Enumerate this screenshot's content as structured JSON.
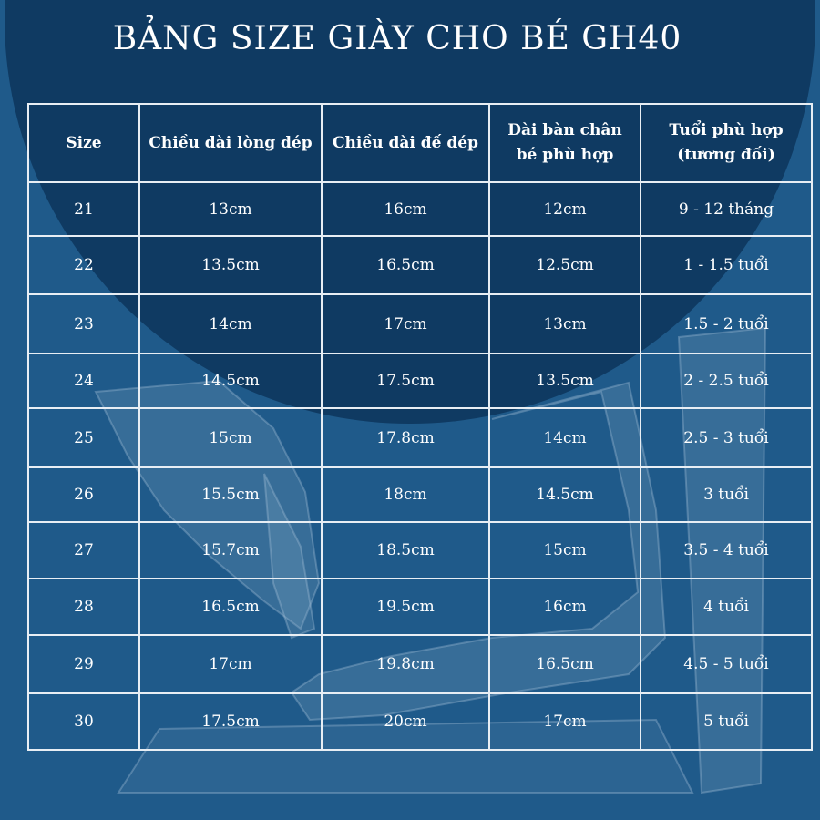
{
  "title": "BẢNG SIZE GIÀY CHO BÉ GH40",
  "colors": {
    "background": "#1f5a8a",
    "dark_circle": "#0f3a62",
    "text": "#ffffff",
    "grid": "#e8eef4"
  },
  "table": {
    "headers": [
      "Size",
      "Chiều dài lòng dép",
      "Chiều dài đế dép",
      "Dài bàn chân bé phù hợp",
      "Tuổi phù hợp (tương đối)"
    ],
    "rows": [
      [
        "21",
        "13cm",
        "16cm",
        "12cm",
        "9 - 12 tháng"
      ],
      [
        "22",
        "13.5cm",
        "16.5cm",
        "12.5cm",
        "1 - 1.5 tuổi"
      ],
      [
        "23",
        "14cm",
        "17cm",
        "13cm",
        "1.5 - 2 tuổi"
      ],
      [
        "24",
        "14.5cm",
        "17.5cm",
        "13.5cm",
        "2 - 2.5 tuổi"
      ],
      [
        "25",
        "15cm",
        "17.8cm",
        "14cm",
        "2.5 - 3 tuổi"
      ],
      [
        "26",
        "15.5cm",
        "18cm",
        "14.5cm",
        "3 tuổi"
      ],
      [
        "27",
        "15.7cm",
        "18.5cm",
        "15cm",
        "3.5 - 4 tuổi"
      ],
      [
        "28",
        "16.5cm",
        "19.5cm",
        "16cm",
        "4 tuổi"
      ],
      [
        "29",
        "17cm",
        "19.8cm",
        "16.5cm",
        "4.5 - 5 tuổi"
      ],
      [
        "30",
        "17.5cm",
        "20cm",
        "17cm",
        "5 tuổi"
      ]
    ]
  }
}
